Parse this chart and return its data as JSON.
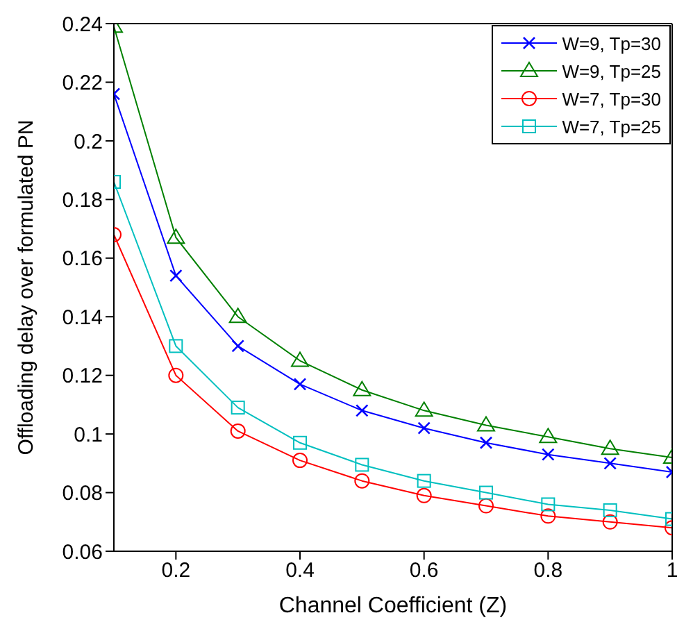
{
  "chart_data": {
    "type": "line",
    "xlabel": "Channel Coefficient (Z)",
    "ylabel": "Offloading delay over formulated PN",
    "x": [
      0.1,
      0.2,
      0.3,
      0.4,
      0.5,
      0.6,
      0.7,
      0.8,
      0.9,
      1.0
    ],
    "series": [
      {
        "name": "W=9, Tp=30",
        "color": "#0000ff",
        "marker": "cross",
        "values": [
          0.216,
          0.154,
          0.13,
          0.117,
          0.108,
          0.102,
          0.097,
          0.093,
          0.09,
          0.087
        ]
      },
      {
        "name": "W=9, Tp=25",
        "color": "#008000",
        "marker": "triangle",
        "values": [
          0.239,
          0.167,
          0.14,
          0.125,
          0.115,
          0.108,
          0.103,
          0.099,
          0.095,
          0.092
        ]
      },
      {
        "name": "W=7, Tp=30",
        "color": "#ff0000",
        "marker": "circle",
        "values": [
          0.168,
          0.12,
          0.101,
          0.091,
          0.084,
          0.079,
          0.0755,
          0.072,
          0.07,
          0.068
        ]
      },
      {
        "name": "W=7, Tp=25",
        "color": "#00bfbf",
        "marker": "square",
        "values": [
          0.186,
          0.13,
          0.109,
          0.097,
          0.0895,
          0.084,
          0.08,
          0.076,
          0.074,
          0.071
        ]
      }
    ],
    "xlim": [
      0.1,
      1
    ],
    "xticks": [
      0.2,
      0.4,
      0.6,
      0.8,
      1
    ],
    "ylim": [
      0.06,
      0.24
    ],
    "yticks": [
      0.06,
      0.08,
      0.1,
      0.12,
      0.14,
      0.16,
      0.18,
      0.2,
      0.22,
      0.24
    ],
    "grid": false,
    "legend": "top right",
    "line_style": "solid"
  }
}
